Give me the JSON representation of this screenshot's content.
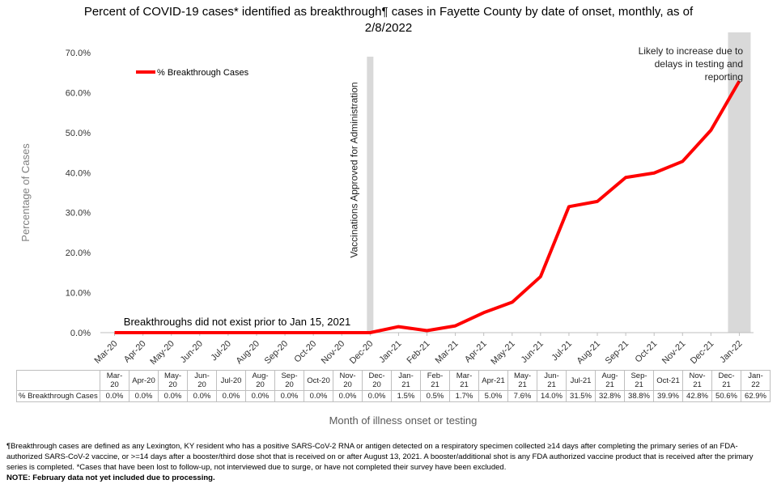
{
  "chart_data": {
    "type": "line",
    "title": "Percent of COVID-19 cases* identified as breakthrough¶ cases in Fayette County by date of onset, monthly, as of 2/8/2022",
    "ylabel": "Percentage of Cases",
    "xlabel": "Month of illness onset or testing",
    "categories": [
      "Mar-20",
      "Apr-20",
      "May-20",
      "Jun-20",
      "Jul-20",
      "Aug-20",
      "Sep-20",
      "Oct-20",
      "Nov-20",
      "Dec-20",
      "Jan-21",
      "Feb-21",
      "Mar-21",
      "Apr-21",
      "May-21",
      "Jun-21",
      "Jul-21",
      "Aug-21",
      "Sep-21",
      "Oct-21",
      "Nov-21",
      "Dec-21",
      "Jan-22"
    ],
    "series": [
      {
        "name": "% Breakthrough Cases",
        "color": "#ff0000",
        "values": [
          0,
          0,
          0,
          0,
          0,
          0,
          0,
          0,
          0,
          0,
          1.5,
          0.5,
          1.7,
          5.0,
          7.6,
          14.0,
          31.5,
          32.8,
          38.8,
          39.9,
          42.8,
          50.6,
          62.9
        ],
        "value_labels": [
          "0.0%",
          "0.0%",
          "0.0%",
          "0.0%",
          "0.0%",
          "0.0%",
          "0.0%",
          "0.0%",
          "0.0%",
          "0.0%",
          "1.5%",
          "0.5%",
          "1.7%",
          "5.0%",
          "7.6%",
          "14.0%",
          "31.5%",
          "32.8%",
          "38.8%",
          "39.9%",
          "42.8%",
          "50.6%",
          "62.9%"
        ]
      }
    ],
    "ylim": [
      0,
      70
    ],
    "yticks": [
      {
        "value": 0,
        "label": "0.0%"
      },
      {
        "value": 10,
        "label": "10.0%"
      },
      {
        "value": 20,
        "label": "20.0%"
      },
      {
        "value": 30,
        "label": "30.0%"
      },
      {
        "value": 40,
        "label": "40.0%"
      },
      {
        "value": 50,
        "label": "50.0%"
      },
      {
        "value": 60,
        "label": "60.0%"
      },
      {
        "value": 70,
        "label": "70.0%"
      }
    ],
    "grid": false,
    "legend": "upper left",
    "highlight_categories": [
      "Dec-20",
      "Jan-22"
    ],
    "annotations": [
      "Vaccinations Approved for Administration",
      "Breakthroughs did not exist prior to Jan 15, 2021",
      "Likely to increase due to delays in testing and reporting"
    ],
    "notes": [
      "¶Breakthrough cases are defined as any Lexington, KY resident who has a positive SARS-CoV-2 RNA or antigen detected on a respiratory specimen collected ≥14 days after completing the primary series of an FDA-authorized SARS-CoV-2 vaccine, or >=14 days after a booster/third dose shot that is received on or after August 13, 2021.  A booster/additional shot is any FDA authorized vaccine product that is received after the primary series is completed. *Cases that have been lost to follow-up, not interviewed due to surge, or have not completed their survey have been excluded.",
      "NOTE: February data not yet included due to processing."
    ]
  }
}
